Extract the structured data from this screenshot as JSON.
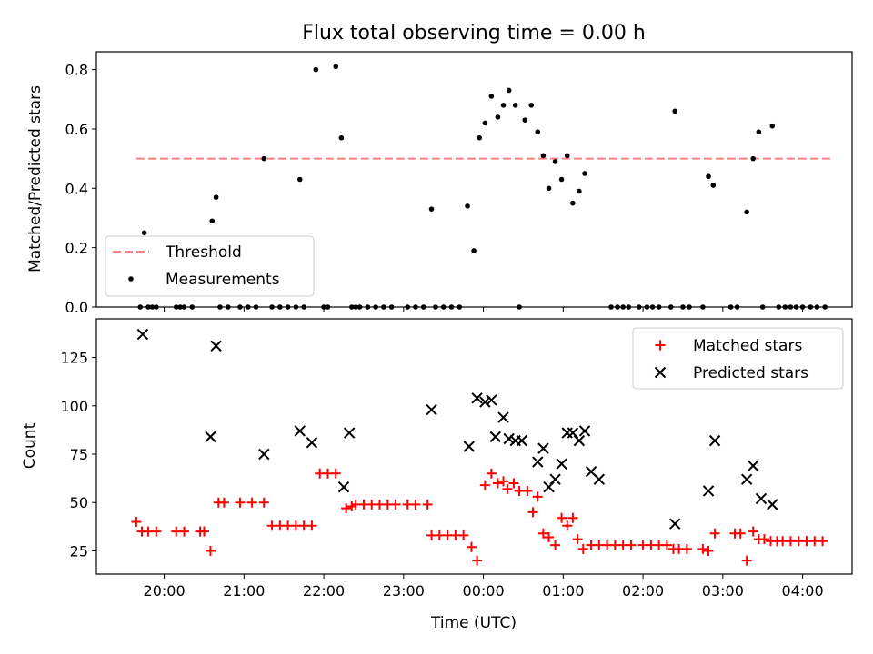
{
  "chart_data": [
    {
      "type": "scatter",
      "title": "Flux total observing time = 0.00 h",
      "xlabel": "",
      "ylabel": "Matched/Predicted stars",
      "ylim": [
        0,
        0.86
      ],
      "yticks": [
        0.0,
        0.2,
        0.4,
        0.6,
        0.8
      ],
      "ytick_labels": [
        "0.0",
        "0.2",
        "0.4",
        "0.6",
        "0.8"
      ],
      "legend_position": "lower-left",
      "threshold": {
        "name": "Threshold",
        "value": 0.5,
        "x_start": -4.35,
        "x_end": 4.35,
        "color": "#ff8080"
      },
      "series": [
        {
          "name": "Measurements",
          "color": "#000000",
          "points": [
            [
              -4.3,
              0
            ],
            [
              -4.25,
              0.25
            ],
            [
              -4.2,
              0
            ],
            [
              -4.15,
              0
            ],
            [
              -4.1,
              0
            ],
            [
              -3.85,
              0
            ],
            [
              -3.8,
              0
            ],
            [
              -3.75,
              0
            ],
            [
              -3.65,
              0
            ],
            [
              -3.4,
              0.29
            ],
            [
              -3.35,
              0.37
            ],
            [
              -3.3,
              0
            ],
            [
              -3.2,
              0
            ],
            [
              -3.05,
              0
            ],
            [
              -2.95,
              0
            ],
            [
              -2.85,
              0
            ],
            [
              -2.75,
              0.5
            ],
            [
              -2.65,
              0
            ],
            [
              -2.55,
              0
            ],
            [
              -2.45,
              0
            ],
            [
              -2.35,
              0
            ],
            [
              -2.3,
              0.43
            ],
            [
              -2.25,
              0
            ],
            [
              -2.1,
              0.8
            ],
            [
              -2.0,
              0
            ],
            [
              -1.95,
              0
            ],
            [
              -1.85,
              0.81
            ],
            [
              -1.78,
              0.57
            ],
            [
              -1.65,
              0
            ],
            [
              -1.6,
              0
            ],
            [
              -1.55,
              0
            ],
            [
              -1.45,
              0
            ],
            [
              -1.35,
              0
            ],
            [
              -1.25,
              0
            ],
            [
              -1.15,
              0
            ],
            [
              -0.95,
              0
            ],
            [
              -0.85,
              0
            ],
            [
              -0.75,
              0
            ],
            [
              -0.65,
              0.33
            ],
            [
              -0.6,
              0
            ],
            [
              -0.5,
              0
            ],
            [
              -0.4,
              0
            ],
            [
              -0.3,
              0
            ],
            [
              -0.2,
              0.34
            ],
            [
              -0.12,
              0.19
            ],
            [
              -0.05,
              0.57
            ],
            [
              0.02,
              0.62
            ],
            [
              0.1,
              0.71
            ],
            [
              0.18,
              0.64
            ],
            [
              0.25,
              0.68
            ],
            [
              0.32,
              0.73
            ],
            [
              0.4,
              0.68
            ],
            [
              0.45,
              0
            ],
            [
              0.52,
              0.63
            ],
            [
              0.6,
              0.68
            ],
            [
              0.68,
              0.59
            ],
            [
              0.75,
              0.51
            ],
            [
              0.82,
              0.4
            ],
            [
              0.9,
              0.49
            ],
            [
              0.98,
              0.43
            ],
            [
              1.05,
              0.51
            ],
            [
              1.12,
              0.35
            ],
            [
              1.2,
              0.39
            ],
            [
              1.27,
              0.45
            ],
            [
              1.6,
              0
            ],
            [
              1.68,
              0
            ],
            [
              1.75,
              0
            ],
            [
              1.82,
              0
            ],
            [
              1.95,
              0
            ],
            [
              2.05,
              0
            ],
            [
              2.12,
              0
            ],
            [
              2.2,
              0
            ],
            [
              2.35,
              0
            ],
            [
              2.4,
              0.66
            ],
            [
              2.5,
              0
            ],
            [
              2.58,
              0
            ],
            [
              2.75,
              0
            ],
            [
              2.82,
              0.44
            ],
            [
              2.88,
              0.41
            ],
            [
              3.1,
              0
            ],
            [
              3.18,
              0
            ],
            [
              3.3,
              0.32
            ],
            [
              3.38,
              0.5
            ],
            [
              3.45,
              0.59
            ],
            [
              3.5,
              0
            ],
            [
              3.62,
              0.61
            ],
            [
              3.7,
              0
            ],
            [
              3.78,
              0
            ],
            [
              3.85,
              0
            ],
            [
              3.92,
              0
            ],
            [
              4.0,
              0
            ],
            [
              4.1,
              0
            ],
            [
              4.18,
              0
            ],
            [
              4.28,
              0
            ]
          ]
        }
      ]
    },
    {
      "type": "scatter",
      "title": "",
      "xlabel": "Time (UTC)",
      "ylabel": "Count",
      "xlim": [
        -4.85,
        4.62
      ],
      "xticks": [
        -4,
        -3,
        -2,
        -1,
        0,
        1,
        2,
        3,
        4
      ],
      "xtick_labels": [
        "20:00",
        "21:00",
        "22:00",
        "23:00",
        "00:00",
        "01:00",
        "02:00",
        "03:00",
        "04:00"
      ],
      "ylim": [
        13,
        145
      ],
      "yticks": [
        25,
        50,
        75,
        100,
        125
      ],
      "ytick_labels": [
        "25",
        "50",
        "75",
        "100",
        "125"
      ],
      "legend_position": "top-right",
      "series": [
        {
          "name": "Matched stars",
          "color": "#ff0000",
          "marker": "plus",
          "points": [
            [
              -4.35,
              40
            ],
            [
              -4.28,
              35
            ],
            [
              -4.2,
              35
            ],
            [
              -4.1,
              35
            ],
            [
              -3.85,
              35
            ],
            [
              -3.75,
              35
            ],
            [
              -3.55,
              35
            ],
            [
              -3.5,
              35
            ],
            [
              -3.42,
              25
            ],
            [
              -3.32,
              50
            ],
            [
              -3.25,
              50
            ],
            [
              -3.05,
              50
            ],
            [
              -2.9,
              50
            ],
            [
              -2.75,
              50
            ],
            [
              -2.65,
              38
            ],
            [
              -2.55,
              38
            ],
            [
              -2.45,
              38
            ],
            [
              -2.35,
              38
            ],
            [
              -2.25,
              38
            ],
            [
              -2.15,
              38
            ],
            [
              -2.05,
              65
            ],
            [
              -1.95,
              65
            ],
            [
              -1.85,
              65
            ],
            [
              -1.72,
              47
            ],
            [
              -1.65,
              48
            ],
            [
              -1.6,
              49
            ],
            [
              -1.5,
              49
            ],
            [
              -1.4,
              49
            ],
            [
              -1.3,
              49
            ],
            [
              -1.2,
              49
            ],
            [
              -1.1,
              49
            ],
            [
              -0.95,
              49
            ],
            [
              -0.85,
              49
            ],
            [
              -0.7,
              49
            ],
            [
              -0.65,
              33
            ],
            [
              -0.55,
              33
            ],
            [
              -0.45,
              33
            ],
            [
              -0.35,
              33
            ],
            [
              -0.25,
              33
            ],
            [
              -0.15,
              27
            ],
            [
              -0.08,
              20
            ],
            [
              0.02,
              59
            ],
            [
              0.1,
              65
            ],
            [
              0.18,
              60
            ],
            [
              0.25,
              61
            ],
            [
              0.3,
              57
            ],
            [
              0.38,
              60
            ],
            [
              0.45,
              56
            ],
            [
              0.55,
              56
            ],
            [
              0.62,
              45
            ],
            [
              0.68,
              53
            ],
            [
              0.75,
              34
            ],
            [
              0.82,
              32
            ],
            [
              0.9,
              28
            ],
            [
              0.98,
              42
            ],
            [
              1.05,
              38
            ],
            [
              1.12,
              42
            ],
            [
              1.18,
              31
            ],
            [
              1.25,
              26
            ],
            [
              1.35,
              28
            ],
            [
              1.45,
              28
            ],
            [
              1.55,
              28
            ],
            [
              1.65,
              28
            ],
            [
              1.75,
              28
            ],
            [
              1.85,
              28
            ],
            [
              2.0,
              28
            ],
            [
              2.1,
              28
            ],
            [
              2.2,
              28
            ],
            [
              2.3,
              28
            ],
            [
              2.38,
              26
            ],
            [
              2.45,
              26
            ],
            [
              2.55,
              26
            ],
            [
              2.75,
              26
            ],
            [
              2.82,
              25
            ],
            [
              2.9,
              34
            ],
            [
              3.15,
              34
            ],
            [
              3.22,
              34
            ],
            [
              3.3,
              20
            ],
            [
              3.38,
              35
            ],
            [
              3.45,
              31
            ],
            [
              3.52,
              31
            ],
            [
              3.6,
              30
            ],
            [
              3.68,
              30
            ],
            [
              3.75,
              30
            ],
            [
              3.85,
              30
            ],
            [
              3.95,
              30
            ],
            [
              4.05,
              30
            ],
            [
              4.15,
              30
            ],
            [
              4.25,
              30
            ]
          ]
        },
        {
          "name": "Predicted stars",
          "color": "#000000",
          "marker": "x",
          "points": [
            [
              -4.27,
              137
            ],
            [
              -3.42,
              84
            ],
            [
              -3.35,
              131
            ],
            [
              -2.75,
              75
            ],
            [
              -2.3,
              87
            ],
            [
              -2.15,
              81
            ],
            [
              -1.75,
              58
            ],
            [
              -1.68,
              86
            ],
            [
              -0.65,
              98
            ],
            [
              -0.18,
              79
            ],
            [
              -0.08,
              104
            ],
            [
              0.02,
              102
            ],
            [
              0.1,
              103
            ],
            [
              0.15,
              84
            ],
            [
              0.25,
              94
            ],
            [
              0.32,
              83
            ],
            [
              0.4,
              82
            ],
            [
              0.48,
              82
            ],
            [
              0.68,
              71
            ],
            [
              0.75,
              78
            ],
            [
              0.82,
              58
            ],
            [
              0.9,
              62
            ],
            [
              0.98,
              70
            ],
            [
              1.05,
              86
            ],
            [
              1.12,
              86
            ],
            [
              1.2,
              82
            ],
            [
              1.27,
              87
            ],
            [
              1.35,
              66
            ],
            [
              1.45,
              62
            ],
            [
              2.4,
              39
            ],
            [
              2.82,
              56
            ],
            [
              2.9,
              82
            ],
            [
              3.3,
              62
            ],
            [
              3.38,
              69
            ],
            [
              3.48,
              52
            ],
            [
              3.62,
              49
            ]
          ]
        }
      ]
    }
  ]
}
